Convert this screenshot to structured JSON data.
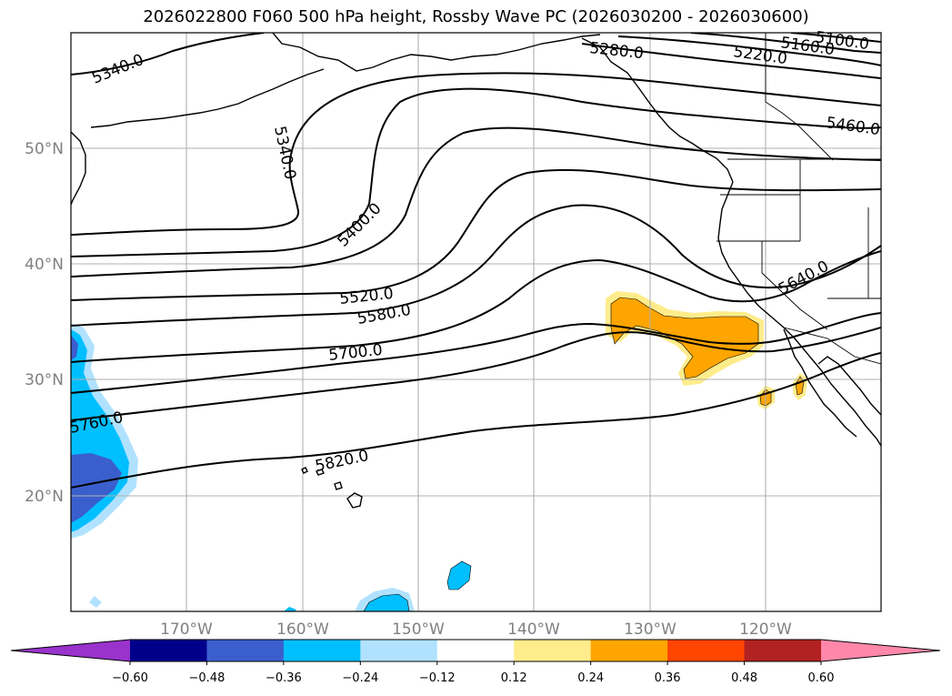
{
  "title": "2026022800 F060 500 hPa height, Rossby Wave PC (2026030200 - 2026030600)",
  "lat_ticks": [
    "50°N",
    "40°N",
    "30°N",
    "20°N"
  ],
  "lon_ticks": [
    "170°W",
    "160°W",
    "150°W",
    "140°W",
    "130°W",
    "120°W"
  ],
  "contour_labels": [
    "5340.0",
    "5340.0",
    "5400.0",
    "5280.0",
    "5220.0",
    "5160.0",
    "5100.0",
    "5460.0",
    "5520.0",
    "5580.0",
    "5640.0",
    "5700.0",
    "5760.0",
    "5820.0"
  ],
  "colorbar": {
    "labels": [
      "−0.60",
      "−0.48",
      "−0.36",
      "−0.24",
      "−0.12",
      "0.12",
      "0.24",
      "0.36",
      "0.48",
      "0.60"
    ],
    "colors": [
      "#9933cc",
      "#00008b",
      "#3a5fcd",
      "#00bfff",
      "#b0e2ff",
      "#ffffff",
      "#ffec8b",
      "#ffa500",
      "#ff4500",
      "#b22222",
      "#ff88aa"
    ]
  }
}
